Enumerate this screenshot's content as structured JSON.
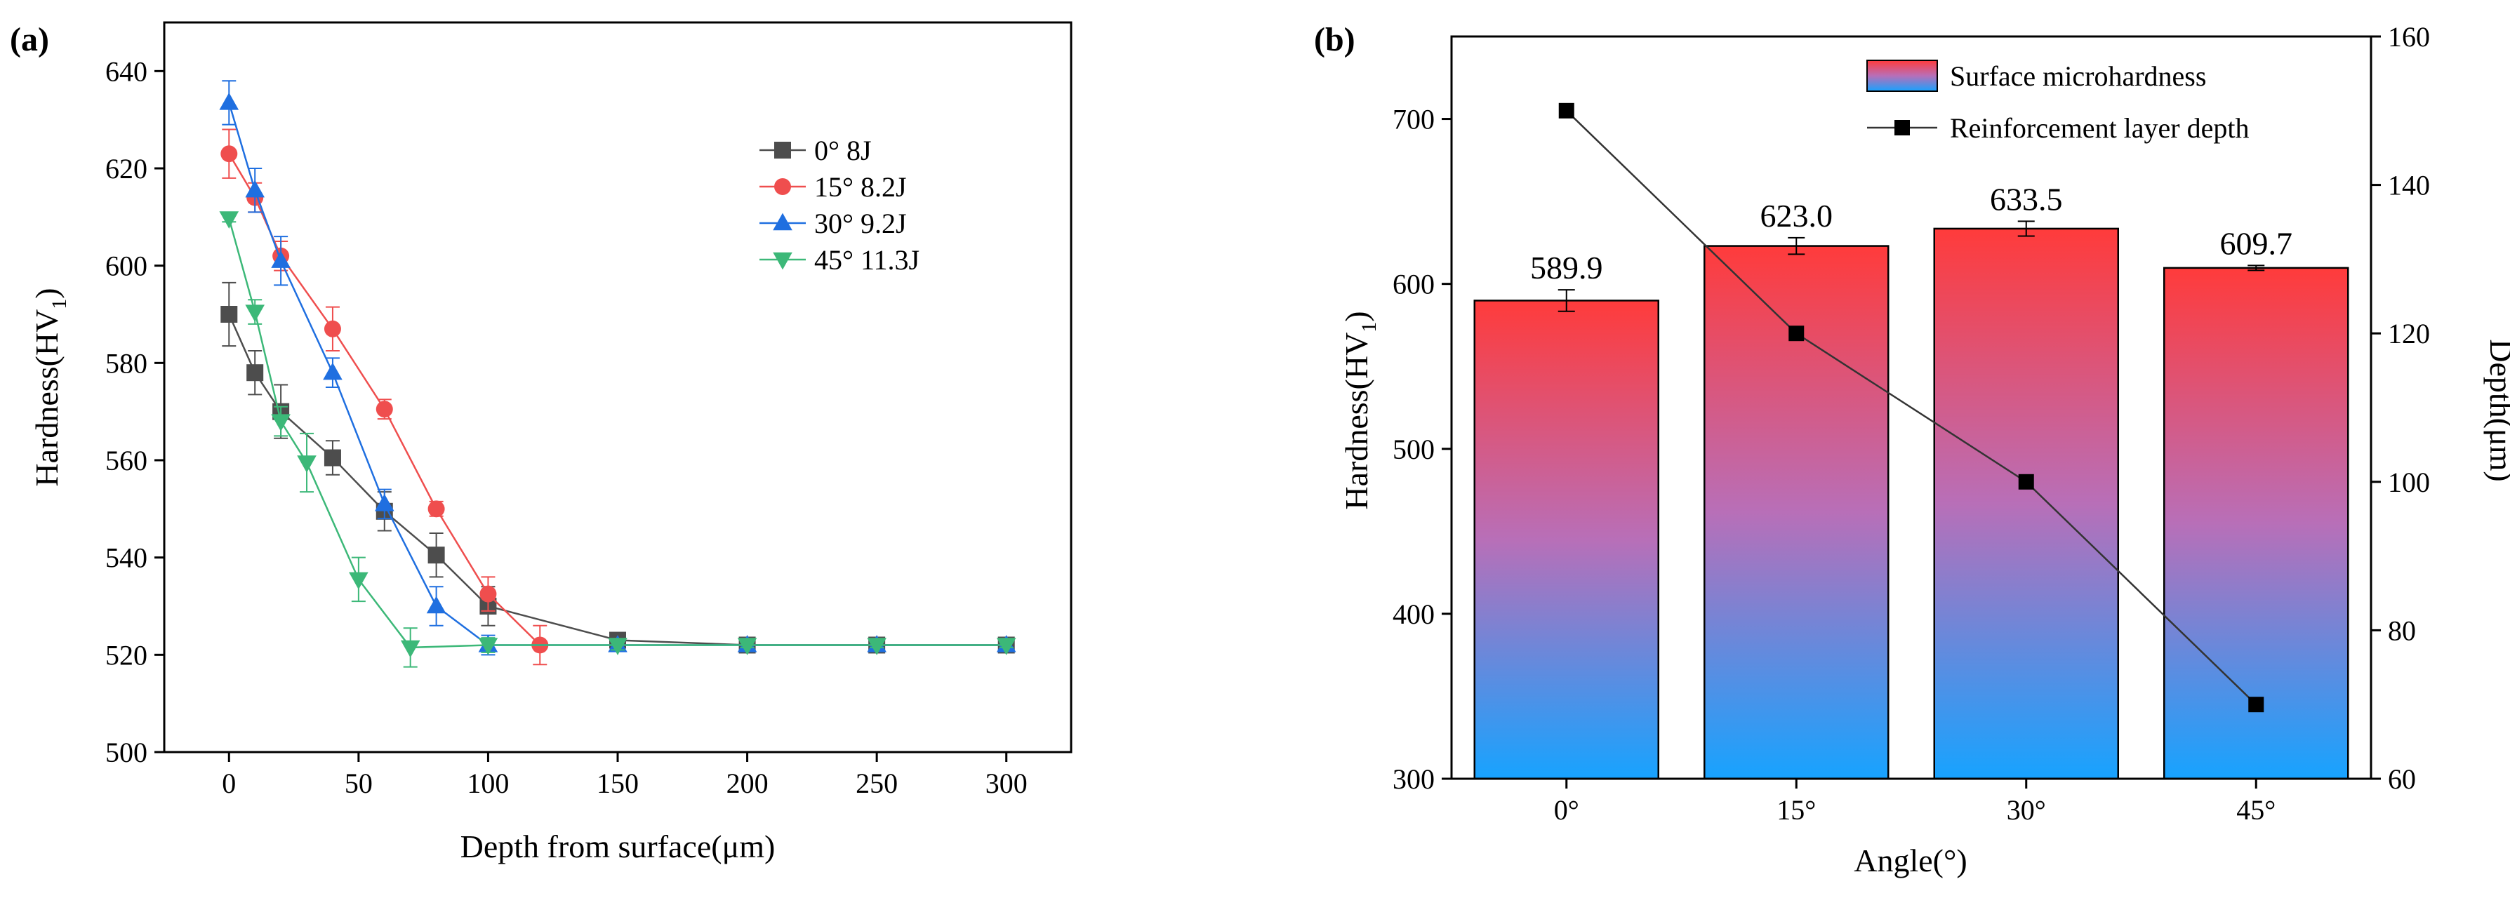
{
  "chart_data": [
    {
      "panel_label": "(a)",
      "type": "line",
      "xlabel": "Depth from surface(μm)",
      "ylabel": "Hardness(HV",
      "ylabel_sub": "1",
      "ylabel_close": ")",
      "xlim": [
        -25,
        325
      ],
      "ylim": [
        500,
        650
      ],
      "xticks": [
        0,
        50,
        100,
        150,
        200,
        250,
        300
      ],
      "yticks": [
        500,
        520,
        540,
        560,
        580,
        600,
        620,
        640
      ],
      "legend_position": "top-right",
      "series": [
        {
          "name": "0°   8J",
          "color": "#4d4d4d",
          "marker": "square",
          "x": [
            0,
            10,
            20,
            40,
            60,
            80,
            100,
            150,
            200,
            250,
            300
          ],
          "y": [
            590,
            578,
            570,
            560.5,
            549.5,
            540.5,
            530,
            523,
            522,
            522,
            522
          ],
          "err": [
            6.5,
            4.5,
            5.5,
            3.5,
            4,
            4.5,
            4,
            1,
            0.5,
            0.5,
            0.5
          ]
        },
        {
          "name": "15° 8.2J",
          "color": "#ef4e4e",
          "marker": "circle",
          "x": [
            0,
            10,
            20,
            40,
            60,
            80,
            100,
            120
          ],
          "y": [
            623,
            614,
            602,
            587,
            570.5,
            550,
            532.5,
            522
          ],
          "err": [
            5,
            3,
            3,
            4.5,
            2,
            1.5,
            3.5,
            4
          ]
        },
        {
          "name": "30° 9.2J",
          "color": "#1f6fe0",
          "marker": "triangle-up",
          "x": [
            0,
            10,
            20,
            40,
            60,
            80,
            100,
            150,
            200,
            250,
            300
          ],
          "y": [
            633.5,
            615.5,
            601,
            578,
            551,
            530,
            522,
            522,
            522,
            522,
            522
          ],
          "err": [
            4.5,
            4.5,
            5,
            3,
            3,
            4,
            2,
            1,
            0.5,
            0.5,
            0.5
          ]
        },
        {
          "name": "45° 11.3J",
          "color": "#3cb878",
          "marker": "triangle-down",
          "x": [
            0,
            10,
            20,
            30,
            50,
            70,
            100,
            150,
            200,
            250,
            300
          ],
          "y": [
            609.7,
            590.5,
            568,
            559.5,
            535.5,
            521.5,
            522,
            522,
            522,
            522,
            522
          ],
          "err": [
            0.7,
            2.5,
            3,
            6,
            4.5,
            4,
            1.5,
            1,
            0.5,
            0.5,
            0.5
          ]
        }
      ]
    },
    {
      "panel_label": "(b)",
      "type": "bar",
      "xlabel": "Angle(°)",
      "ylabel": "Hardness(HV",
      "ylabel_sub": "1",
      "ylabel_close": ")",
      "y2label": "Depth(μm)",
      "categories": [
        "0°",
        "15°",
        "30°",
        "45°"
      ],
      "ylim": [
        300,
        750
      ],
      "yticks": [
        300,
        400,
        500,
        600,
        700
      ],
      "y2lim": [
        60,
        160
      ],
      "y2ticks": [
        60,
        80,
        100,
        120,
        140,
        160
      ],
      "gradient": {
        "top": "#ff3b3b",
        "bottom": "#17a3ff"
      },
      "legend_position": "top-right",
      "series": [
        {
          "name": "Surface microhardness",
          "axis": "left",
          "type": "bar",
          "values": [
            589.9,
            623.0,
            633.5,
            609.7
          ],
          "labels": [
            "589.9",
            "623.0",
            "633.5",
            "609.7"
          ],
          "err": [
            6.5,
            5,
            4.5,
            1.5
          ]
        },
        {
          "name": "Reinforcement layer depth",
          "axis": "right",
          "type": "line",
          "color": "#333333",
          "marker": "square",
          "values": [
            150,
            120,
            100,
            70
          ]
        }
      ]
    }
  ]
}
